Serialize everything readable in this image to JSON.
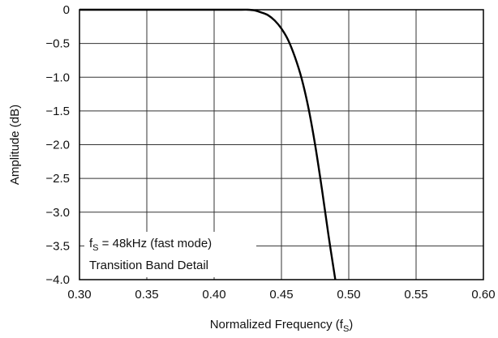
{
  "chart_data": {
    "type": "line",
    "title": "",
    "xlabel": "Normalized Frequency (f",
    "xlabel_sub": "S",
    "xlabel_close": ")",
    "ylabel": "Amplitude (dB)",
    "xlim": [
      0.3,
      0.6
    ],
    "ylim": [
      -4.0,
      0
    ],
    "x_ticks": [
      "0.30",
      "0.35",
      "0.40",
      "0.45",
      "0.50",
      "0.55",
      "0.60"
    ],
    "y_ticks": [
      "0",
      "−0.5",
      "−1.0",
      "−1.5",
      "−2.0",
      "−2.5",
      "−3.0",
      "−3.5",
      "−4.0"
    ],
    "grid": true,
    "annotation": {
      "line1_prefix": "f",
      "line1_sub": "S",
      "line1_suffix": " = 48kHz (fast mode)",
      "line2": "Transition Band Detail"
    },
    "series": [
      {
        "x": [
          0.3,
          0.35,
          0.4,
          0.42,
          0.425,
          0.43,
          0.435,
          0.44,
          0.445,
          0.45,
          0.455,
          0.46,
          0.465,
          0.47,
          0.475,
          0.48,
          0.485,
          0.49
        ],
        "y": [
          0,
          0,
          0,
          0,
          0,
          -0.01,
          -0.04,
          -0.08,
          -0.16,
          -0.28,
          -0.45,
          -0.7,
          -1.02,
          -1.45,
          -2.0,
          -2.65,
          -3.35,
          -4.0
        ]
      }
    ]
  }
}
